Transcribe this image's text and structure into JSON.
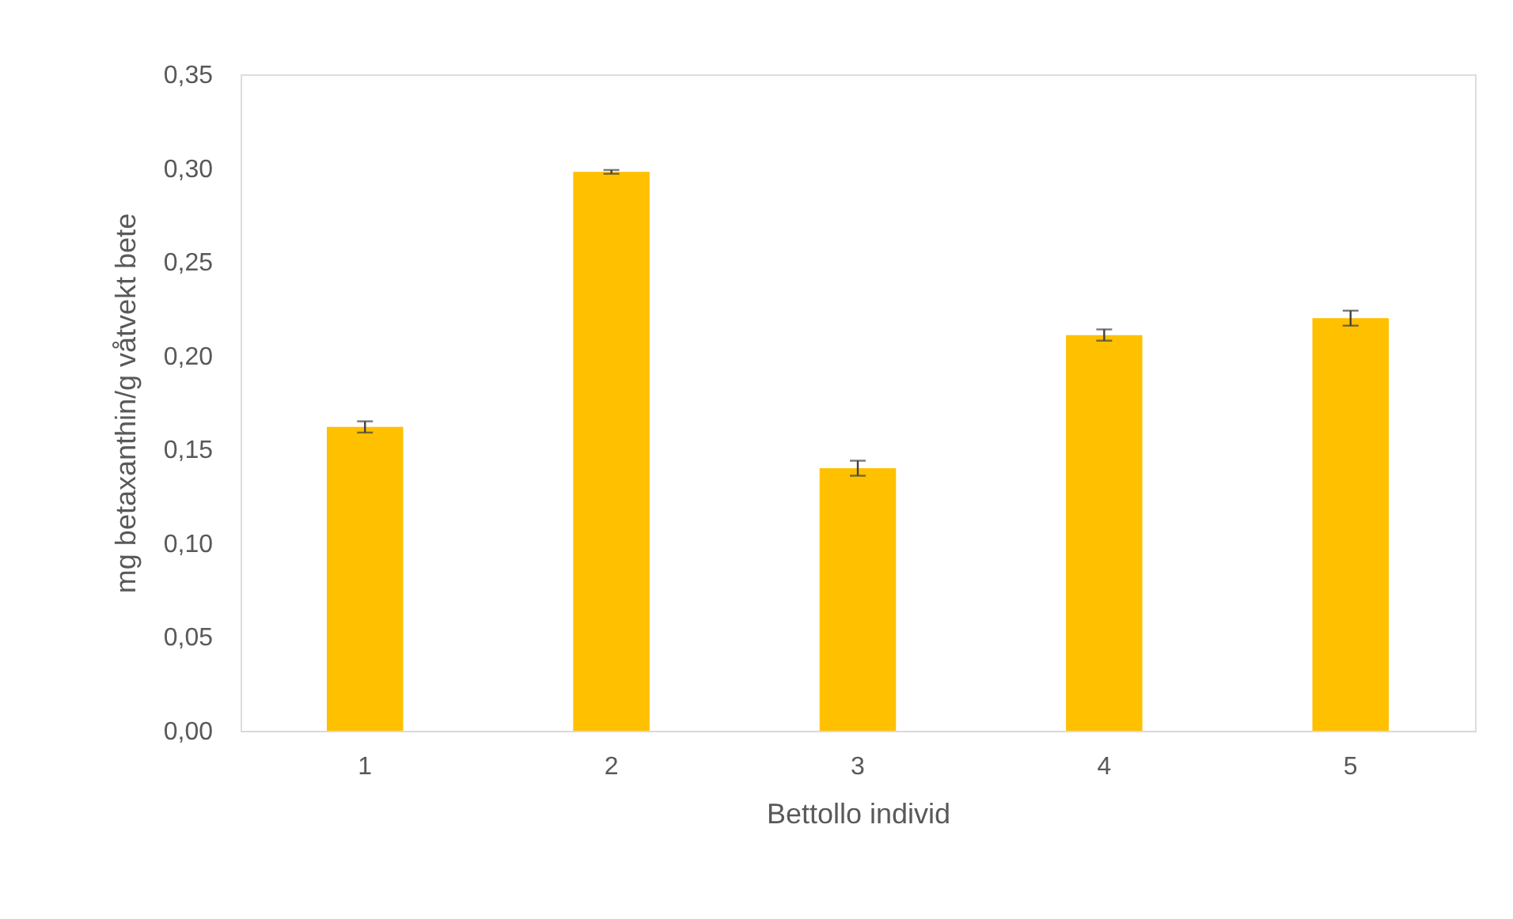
{
  "chart_data": {
    "type": "bar",
    "xlabel": "Bettollo individ",
    "ylabel": "mg betaxanthin/g våtvekt bete",
    "categories": [
      "1",
      "2",
      "3",
      "4",
      "5"
    ],
    "values": [
      0.162,
      0.298,
      0.14,
      0.211,
      0.22
    ],
    "errors": [
      0.003,
      0.001,
      0.004,
      0.003,
      0.004
    ],
    "color": "#ffc000",
    "ylim": [
      0,
      0.35
    ],
    "yticks": [
      {
        "value": 0,
        "label": "0,00"
      },
      {
        "value": 0.05,
        "label": "0,05"
      },
      {
        "value": 0.1,
        "label": "0,10"
      },
      {
        "value": 0.15,
        "label": "0,15"
      },
      {
        "value": 0.2,
        "label": "0,20"
      },
      {
        "value": 0.25,
        "label": "0,25"
      },
      {
        "value": 0.3,
        "label": "0,30"
      },
      {
        "value": 0.35,
        "label": "0,35"
      }
    ],
    "grid": false
  }
}
